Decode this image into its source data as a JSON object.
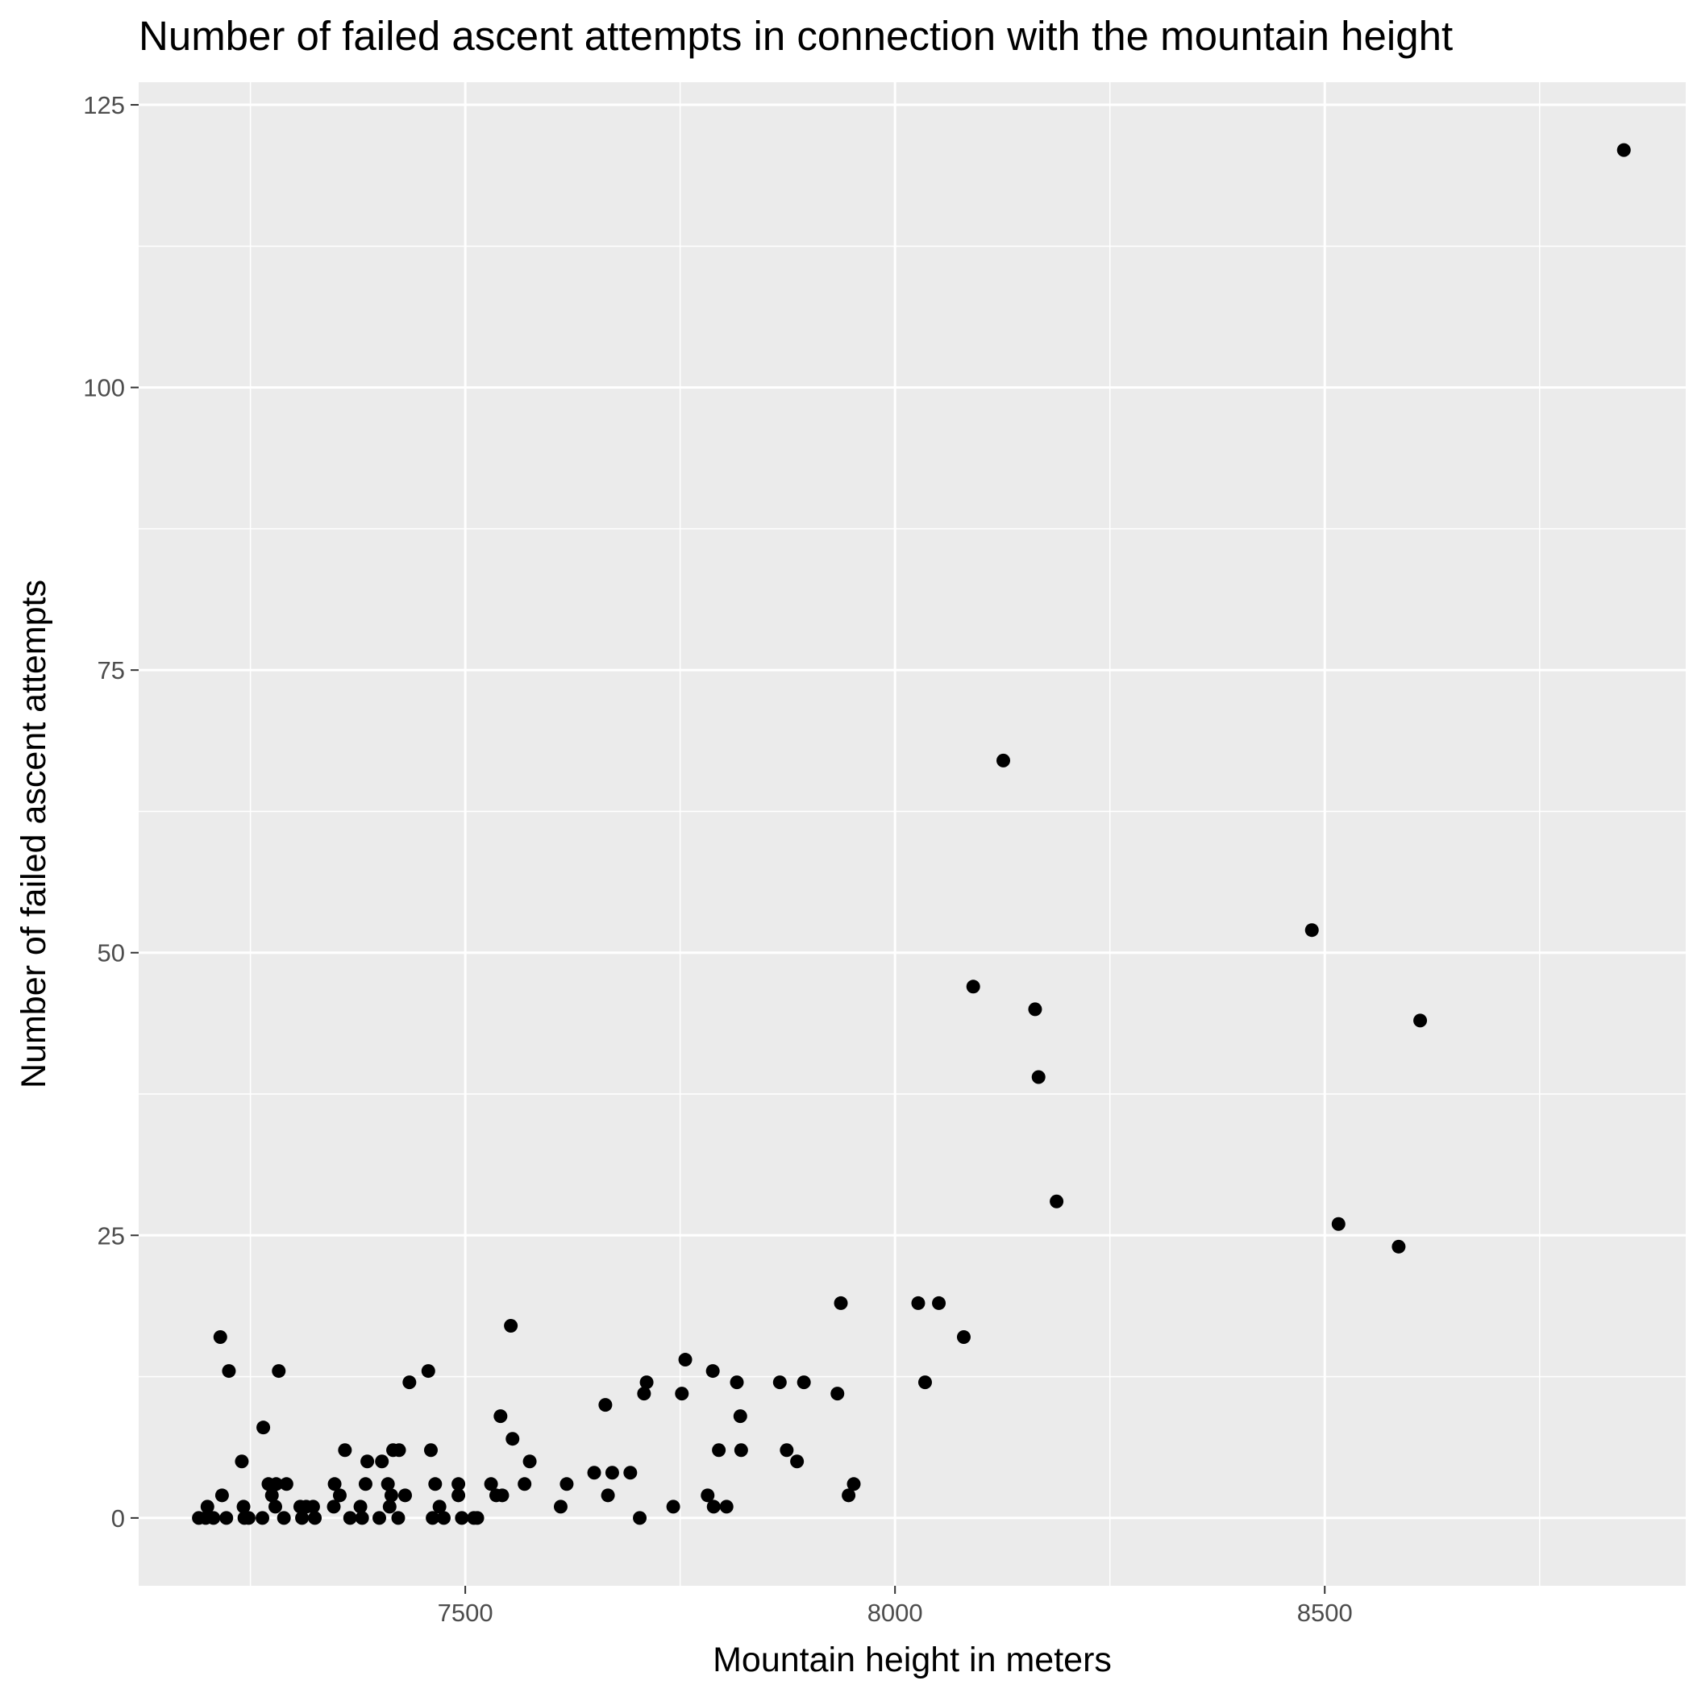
{
  "chart_data": {
    "type": "scatter",
    "title": "Number of failed ascent attempts in connection with the mountain height",
    "xlabel": "Mountain height in meters",
    "ylabel": "Number of failed ascent attempts",
    "xlim": [
      7120,
      8920
    ],
    "ylim": [
      -6,
      127
    ],
    "x_ticks": [
      7500,
      8000,
      8500
    ],
    "y_ticks": [
      0,
      25,
      50,
      75,
      100,
      125
    ],
    "grid": true,
    "legend": "none",
    "colors": {
      "panel": "#ebebeb",
      "point": "#000000",
      "grid": "#ffffff",
      "tick_text": "#4d4d4d"
    },
    "points": [
      [
        8848,
        121
      ],
      [
        8611,
        44
      ],
      [
        8586,
        24
      ],
      [
        8516,
        26
      ],
      [
        8485,
        52
      ],
      [
        8188,
        28
      ],
      [
        8167,
        39
      ],
      [
        8163,
        45
      ],
      [
        8126,
        67
      ],
      [
        8091,
        47
      ],
      [
        8080,
        16
      ],
      [
        8051,
        19
      ],
      [
        8035,
        12
      ],
      [
        8027,
        19
      ],
      [
        7952,
        3
      ],
      [
        7946,
        2
      ],
      [
        7937,
        19
      ],
      [
        7933,
        11
      ],
      [
        7894,
        12
      ],
      [
        7886,
        5
      ],
      [
        7874,
        6
      ],
      [
        7866,
        12
      ],
      [
        7821,
        6
      ],
      [
        7820,
        9
      ],
      [
        7816,
        12
      ],
      [
        7804,
        1
      ],
      [
        7795,
        6
      ],
      [
        7789,
        1
      ],
      [
        7788,
        13
      ],
      [
        7782,
        2
      ],
      [
        7756,
        14
      ],
      [
        7752,
        11
      ],
      [
        7742,
        1
      ],
      [
        7711,
        12
      ],
      [
        7708,
        11
      ],
      [
        7703,
        0
      ],
      [
        7692,
        4
      ],
      [
        7671,
        4
      ],
      [
        7666,
        2
      ],
      [
        7663,
        10
      ],
      [
        7650,
        4
      ],
      [
        7618,
        3
      ],
      [
        7611,
        1
      ],
      [
        7575,
        5
      ],
      [
        7569,
        3
      ],
      [
        7555,
        7
      ],
      [
        7553,
        17
      ],
      [
        7541,
        9
      ],
      [
        7543,
        2
      ],
      [
        7536,
        2
      ],
      [
        7530,
        3
      ],
      [
        7514,
        0
      ],
      [
        7510,
        0
      ],
      [
        7496,
        0
      ],
      [
        7492,
        3
      ],
      [
        7492,
        2
      ],
      [
        7475,
        0
      ],
      [
        7470,
        1
      ],
      [
        7465,
        3
      ],
      [
        7462,
        0
      ],
      [
        7460,
        6
      ],
      [
        7457,
        13
      ],
      [
        7435,
        12
      ],
      [
        7430,
        2
      ],
      [
        7423,
        6
      ],
      [
        7422,
        0
      ],
      [
        7416,
        6
      ],
      [
        7414,
        2
      ],
      [
        7412,
        1
      ],
      [
        7410,
        3
      ],
      [
        7403,
        5
      ],
      [
        7400,
        0
      ],
      [
        7386,
        5
      ],
      [
        7384,
        3
      ],
      [
        7380,
        0
      ],
      [
        7378,
        1
      ],
      [
        7366,
        0
      ],
      [
        7360,
        6
      ],
      [
        7354,
        2
      ],
      [
        7348,
        3
      ],
      [
        7347,
        1
      ],
      [
        7325,
        0
      ],
      [
        7323,
        1
      ],
      [
        7315,
        1
      ],
      [
        7310,
        0
      ],
      [
        7308,
        1
      ],
      [
        7292,
        3
      ],
      [
        7289,
        0
      ],
      [
        7283,
        13
      ],
      [
        7280,
        3
      ],
      [
        7279,
        1
      ],
      [
        7275,
        2
      ],
      [
        7271,
        3
      ],
      [
        7265,
        8
      ],
      [
        7264,
        0
      ],
      [
        7248,
        0
      ],
      [
        7242,
        1
      ],
      [
        7243,
        0
      ],
      [
        7240,
        5
      ],
      [
        7225,
        13
      ],
      [
        7222,
        0
      ],
      [
        7217,
        2
      ],
      [
        7215,
        16
      ],
      [
        7207,
        0
      ],
      [
        7200,
        1
      ],
      [
        7198,
        0
      ],
      [
        7190,
        0
      ]
    ]
  }
}
